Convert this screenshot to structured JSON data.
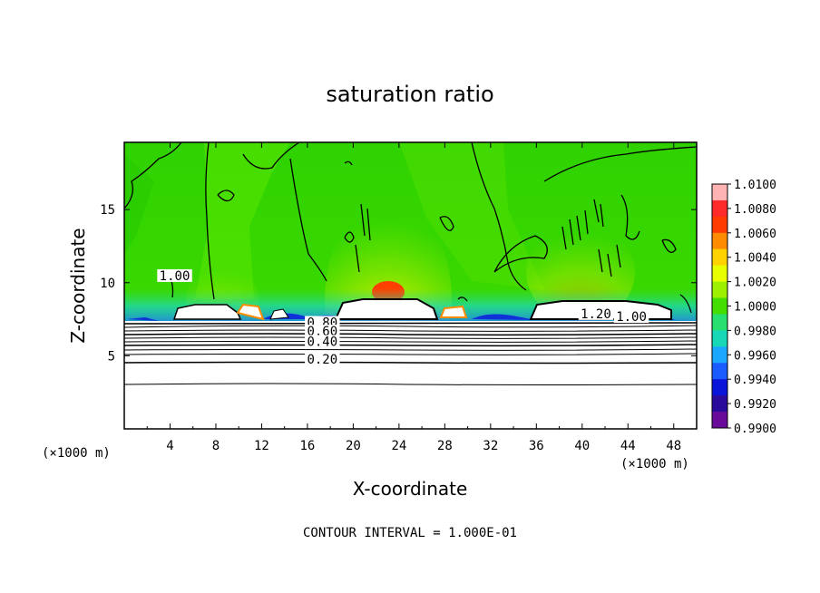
{
  "chart_data": {
    "type": "heatmap",
    "title": "saturation ratio",
    "xlabel": "X-coordinate",
    "ylabel": "Z-coordinate",
    "x_unit": "(×1000 m)",
    "y_unit": "(×1000 m)",
    "xlim": [
      0,
      50
    ],
    "ylim": [
      0,
      19.6
    ],
    "x_ticks": [
      4,
      8,
      12,
      16,
      20,
      24,
      28,
      32,
      36,
      40,
      44,
      48
    ],
    "y_ticks": [
      5,
      10,
      15
    ],
    "colorbar": {
      "levels": [
        "1.0100",
        "1.0080",
        "1.0060",
        "1.0040",
        "1.0020",
        "1.0000",
        "0.9980",
        "0.9960",
        "0.9940",
        "0.9920",
        "0.9900"
      ],
      "colors": [
        "#ffb3b3",
        "#ff2a2a",
        "#ff3b00",
        "#ff8c00",
        "#ffd200",
        "#e8ff00",
        "#9cf000",
        "#44dd00",
        "#27e070",
        "#18d8b8",
        "#1aa8ff",
        "#1a5cff",
        "#0a14d8",
        "#2a0a9a",
        "#6a0a9a"
      ]
    },
    "contour_labels": [
      {
        "text": "1.00",
        "x": 4.4,
        "z": 10.3
      },
      {
        "text": "1.20",
        "x": 41.2,
        "z": 7.7
      },
      {
        "text": "1.00",
        "x": 44.3,
        "z": 7.5
      },
      {
        "text": "0.80",
        "x": 17.3,
        "z": 7.1
      },
      {
        "text": "0.60",
        "x": 17.3,
        "z": 6.5
      },
      {
        "text": "0.40",
        "x": 17.3,
        "z": 5.8
      },
      {
        "text": "0.20",
        "x": 17.3,
        "z": 4.6
      }
    ],
    "contour_interval": "CONTOUR INTERVAL = 1.000E-01"
  }
}
